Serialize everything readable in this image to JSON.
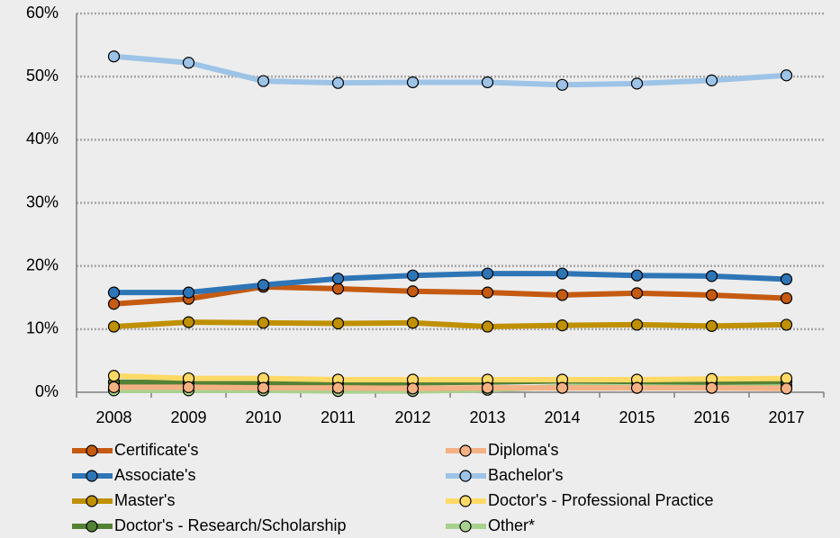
{
  "chart_data": {
    "type": "line",
    "categories": [
      "2008",
      "2009",
      "2010",
      "2011",
      "2012",
      "2013",
      "2014",
      "2015",
      "2016",
      "2017"
    ],
    "series": [
      {
        "name": "Certificate's",
        "color": "#c55a11",
        "values": [
          14.0,
          14.8,
          16.7,
          16.4,
          16.0,
          15.8,
          15.4,
          15.7,
          15.4,
          14.9
        ]
      },
      {
        "name": "Diploma's",
        "color": "#f4b183",
        "values": [
          0.8,
          0.8,
          0.7,
          0.7,
          0.6,
          0.7,
          0.7,
          0.7,
          0.7,
          0.6
        ]
      },
      {
        "name": "Associate's",
        "color": "#2e75b6",
        "values": [
          15.8,
          15.8,
          17.0,
          18.0,
          18.5,
          18.8,
          18.8,
          18.5,
          18.4,
          17.9
        ]
      },
      {
        "name": "Bachelor's",
        "color": "#9dc3e6",
        "values": [
          53.2,
          52.2,
          49.3,
          49.0,
          49.1,
          49.1,
          48.7,
          48.9,
          49.4,
          50.2
        ]
      },
      {
        "name": "Master's",
        "color": "#bf9000",
        "values": [
          10.4,
          11.1,
          11.0,
          10.9,
          11.0,
          10.4,
          10.6,
          10.7,
          10.5,
          10.7
        ]
      },
      {
        "name": "Doctor's - Professional Practice",
        "color": "#ffd966",
        "values": [
          2.6,
          2.2,
          2.2,
          2.0,
          2.0,
          2.0,
          2.0,
          2.0,
          2.1,
          2.2
        ]
      },
      {
        "name": "Doctor's - Research/Scholarship",
        "color": "#548235",
        "values": [
          1.6,
          1.5,
          1.5,
          1.5,
          1.5,
          1.6,
          1.8,
          1.7,
          1.6,
          1.7
        ]
      },
      {
        "name": "Other*",
        "color": "#a9d18e",
        "values": [
          0.3,
          0.3,
          0.3,
          0.2,
          0.2,
          0.4,
          0.9,
          0.8,
          1.2,
          1.0
        ]
      }
    ],
    "ylim": [
      0,
      60
    ],
    "yticks": [
      {
        "value": 0,
        "label": "0%"
      },
      {
        "value": 10,
        "label": "10%"
      },
      {
        "value": 20,
        "label": "20%"
      },
      {
        "value": 30,
        "label": "30%"
      },
      {
        "value": 40,
        "label": "40%"
      },
      {
        "value": 50,
        "label": "50%"
      },
      {
        "value": 60,
        "label": "60%"
      }
    ],
    "grid": true,
    "legend": "bottom"
  }
}
